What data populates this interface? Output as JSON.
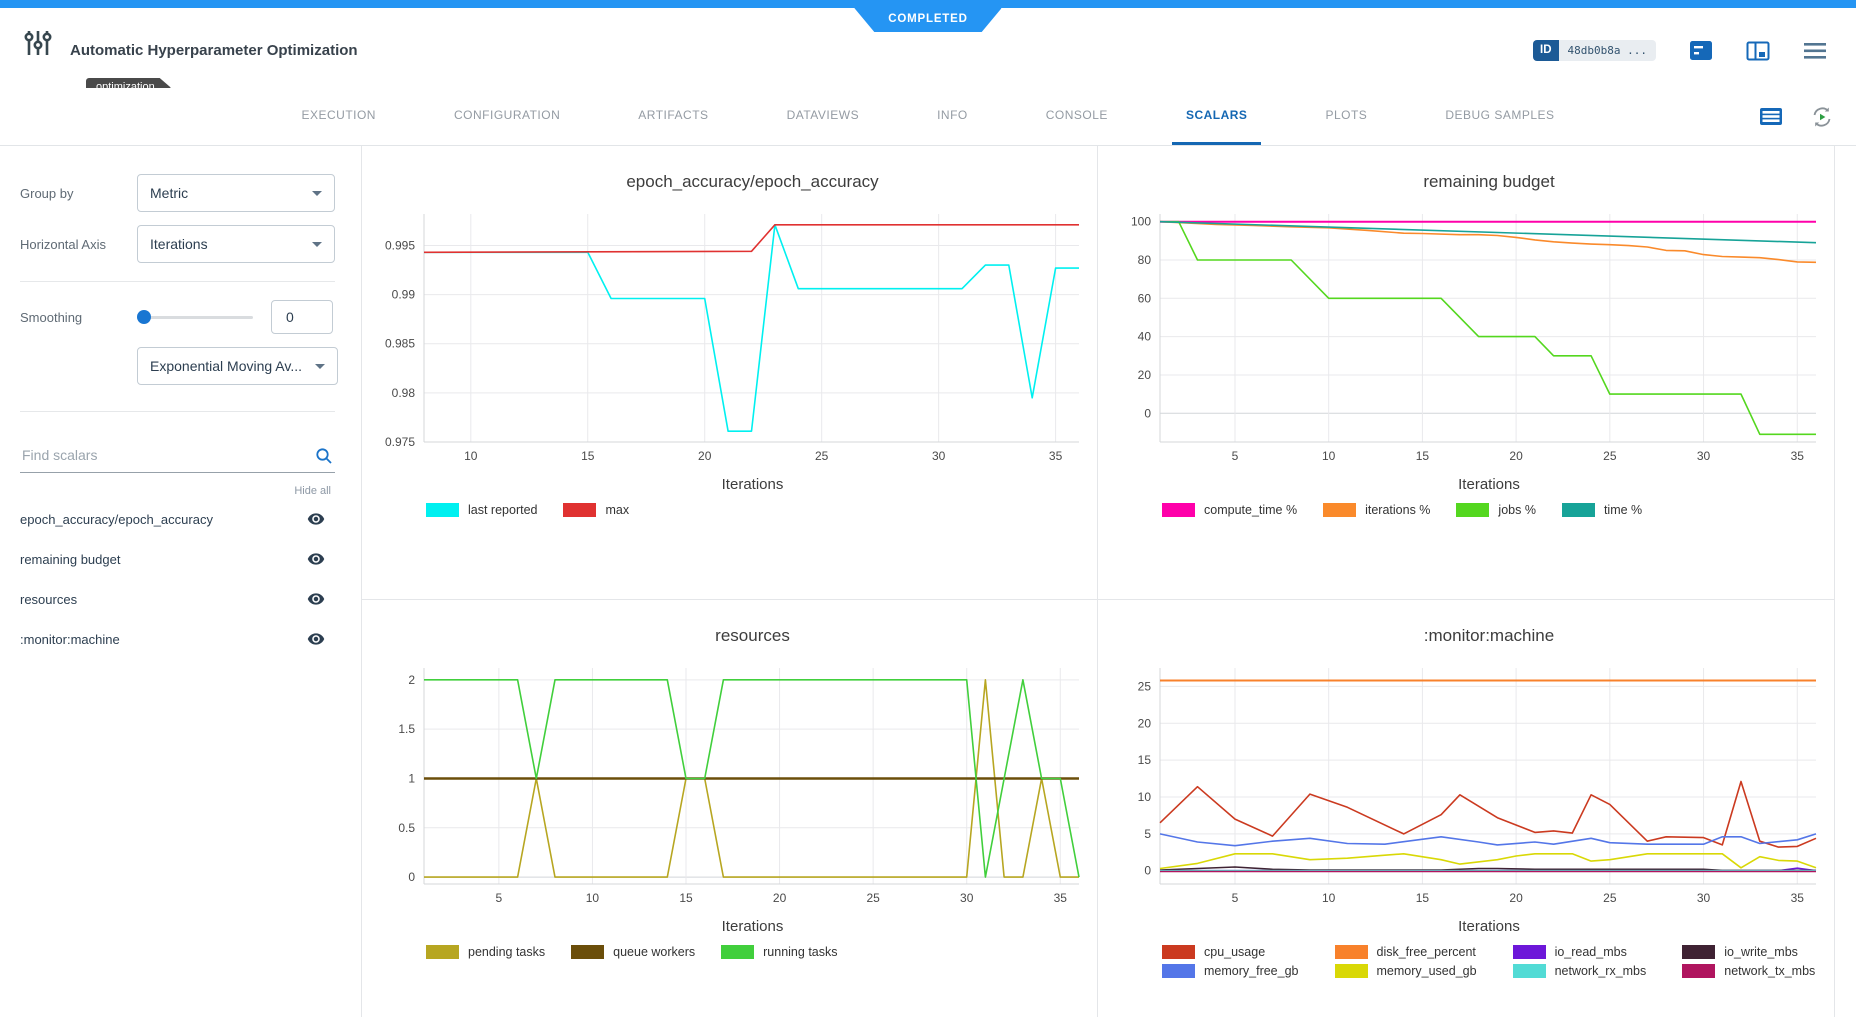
{
  "header": {
    "status_badge": "COMPLETED",
    "title": "Automatic Hyperparameter Optimization",
    "tag": "optimization",
    "id_label": "ID",
    "id_value": "48db0b8a ..."
  },
  "tabs": {
    "items": [
      "EXECUTION",
      "CONFIGURATION",
      "ARTIFACTS",
      "DATAVIEWS",
      "INFO",
      "CONSOLE",
      "SCALARS",
      "PLOTS",
      "DEBUG SAMPLES"
    ],
    "active": "SCALARS"
  },
  "sidebar": {
    "group_by_label": "Group by",
    "group_by_value": "Metric",
    "horizontal_axis_label": "Horizontal Axis",
    "horizontal_axis_value": "Iterations",
    "smoothing_label": "Smoothing",
    "smoothing_value": "0",
    "smoothing_type_value": "Exponential Moving Av...",
    "search_placeholder": "Find scalars",
    "hide_all_label": "Hide all",
    "scalars": [
      "epoch_accuracy/epoch_accuracy",
      "remaining budget",
      "resources",
      ":monitor:machine"
    ]
  },
  "icons": {
    "app": "tune-sliders-icon",
    "header": [
      "comment-icon",
      "split-panel-icon",
      "menu-icon"
    ],
    "tabbar": [
      "table-view-icon",
      "auto-refresh-icon"
    ],
    "sidebar": [
      "search-icon",
      "eye-icon"
    ]
  },
  "colors": {
    "accent_blue": "#2595f3",
    "active_tab": "#1467b3",
    "tag_bg": "#4a4a4a"
  },
  "chart_data": [
    {
      "type": "line",
      "title": "epoch_accuracy/epoch_accuracy",
      "xlabel": "Iterations",
      "xlim": [
        8,
        36
      ],
      "ylim": [
        0.975,
        0.9982
      ],
      "xticks": [
        10,
        15,
        20,
        25,
        30,
        35
      ],
      "yticks": [
        0.975,
        0.98,
        0.985,
        0.99,
        0.995
      ],
      "series": [
        {
          "name": "last reported",
          "color": "#00f0f0",
          "points": [
            [
              8,
              0.9943
            ],
            [
              15,
              0.9943
            ],
            [
              16,
              0.9896
            ],
            [
              20,
              0.9896
            ],
            [
              21,
              0.9761
            ],
            [
              22,
              0.9761
            ],
            [
              23,
              0.9971
            ],
            [
              24,
              0.9906
            ],
            [
              31,
              0.9906
            ],
            [
              32,
              0.993
            ],
            [
              33,
              0.993
            ],
            [
              34,
              0.9795
            ],
            [
              35,
              0.9927
            ],
            [
              36,
              0.9927
            ]
          ]
        },
        {
          "name": "max",
          "color": "#e03231",
          "points": [
            [
              8,
              0.9943
            ],
            [
              22,
              0.9944
            ],
            [
              23,
              0.9971
            ],
            [
              36,
              0.9971
            ]
          ]
        }
      ]
    },
    {
      "type": "line",
      "title": "remaining budget",
      "xlabel": "Iterations",
      "xlim": [
        1,
        36
      ],
      "ylim": [
        -15,
        104
      ],
      "xticks": [
        5,
        10,
        15,
        20,
        25,
        30,
        35
      ],
      "yticks": [
        0,
        20,
        40,
        60,
        80,
        100
      ],
      "series": [
        {
          "name": "compute_time %",
          "color": "#ff00aa",
          "width": 2,
          "points": [
            [
              1,
              100
            ],
            [
              36,
              100
            ]
          ]
        },
        {
          "name": "iterations %",
          "color": "#fa8a2b",
          "points": [
            [
              1,
              100
            ],
            [
              2,
              99.5
            ],
            [
              4,
              98.5
            ],
            [
              6,
              98
            ],
            [
              8,
              97.3
            ],
            [
              10,
              96.8
            ],
            [
              12,
              95.5
            ],
            [
              14,
              94
            ],
            [
              15,
              93.8
            ],
            [
              17,
              93.2
            ],
            [
              18,
              93.2
            ],
            [
              19,
              92.8
            ],
            [
              20,
              91.8
            ],
            [
              21,
              90.5
            ],
            [
              22,
              89.5
            ],
            [
              23,
              88.8
            ],
            [
              24,
              88.3
            ],
            [
              25,
              88
            ],
            [
              26,
              87.5
            ],
            [
              27,
              86.8
            ],
            [
              28,
              85
            ],
            [
              29,
              84.8
            ],
            [
              30,
              82.8
            ],
            [
              31,
              81.8
            ],
            [
              32,
              81.5
            ],
            [
              33,
              81.2
            ],
            [
              34,
              80.2
            ],
            [
              35,
              79
            ],
            [
              36,
              78.8
            ]
          ]
        },
        {
          "name": "jobs %",
          "color": "#54d71f",
          "points": [
            [
              1,
              100
            ],
            [
              2,
              100
            ],
            [
              3,
              80
            ],
            [
              8,
              80
            ],
            [
              10,
              60
            ],
            [
              16,
              60
            ],
            [
              18,
              40
            ],
            [
              21,
              40
            ],
            [
              22,
              30
            ],
            [
              24,
              30
            ],
            [
              25,
              10
            ],
            [
              32,
              10
            ],
            [
              33,
              -11
            ],
            [
              36,
              -11
            ]
          ]
        },
        {
          "name": "time %",
          "color": "#17a398",
          "points": [
            [
              1,
              100
            ],
            [
              36,
              89
            ]
          ]
        }
      ]
    },
    {
      "type": "line",
      "title": "resources",
      "xlabel": "Iterations",
      "xlim": [
        1,
        36
      ],
      "ylim": [
        -0.07,
        2.12
      ],
      "xticks": [
        5,
        10,
        15,
        20,
        25,
        30,
        35
      ],
      "yticks": [
        0,
        0.5,
        1,
        1.5,
        2
      ],
      "series": [
        {
          "name": "pending tasks",
          "color": "#b7a621",
          "points": [
            [
              1,
              0
            ],
            [
              6,
              0
            ],
            [
              7,
              1
            ],
            [
              8,
              0
            ],
            [
              14,
              0
            ],
            [
              15,
              1
            ],
            [
              16,
              1
            ],
            [
              17,
              0
            ],
            [
              30,
              0
            ],
            [
              31,
              2
            ],
            [
              32,
              0
            ],
            [
              33,
              0
            ],
            [
              34,
              1
            ],
            [
              35,
              0
            ],
            [
              36,
              0
            ]
          ]
        },
        {
          "name": "queue workers",
          "color": "#6b4e0a",
          "width": 2.5,
          "points": [
            [
              1,
              1
            ],
            [
              36,
              1
            ]
          ]
        },
        {
          "name": "running tasks",
          "color": "#41cf3c",
          "points": [
            [
              1,
              2
            ],
            [
              6,
              2
            ],
            [
              7,
              1
            ],
            [
              8,
              2
            ],
            [
              14,
              2
            ],
            [
              15,
              1
            ],
            [
              16,
              1
            ],
            [
              17,
              2
            ],
            [
              30,
              2
            ],
            [
              31,
              0
            ],
            [
              33,
              2
            ],
            [
              34,
              1
            ],
            [
              35,
              1
            ],
            [
              36,
              0
            ]
          ]
        }
      ]
    },
    {
      "type": "line",
      "title": ":monitor:machine",
      "xlabel": "Iterations",
      "xlim": [
        1,
        36
      ],
      "ylim": [
        -1.8,
        27.5
      ],
      "xticks": [
        5,
        10,
        15,
        20,
        25,
        30,
        35
      ],
      "yticks": [
        0,
        5,
        10,
        15,
        20,
        25
      ],
      "legend_columns": 4,
      "series": [
        {
          "name": "cpu_usage",
          "color": "#cb3a20",
          "points": [
            [
              1,
              6.5
            ],
            [
              3,
              11.4
            ],
            [
              5,
              7
            ],
            [
              7,
              4.7
            ],
            [
              9,
              10.4
            ],
            [
              11,
              8.6
            ],
            [
              14,
              5
            ],
            [
              16,
              7.6
            ],
            [
              17,
              10.3
            ],
            [
              19,
              7.2
            ],
            [
              21,
              5.2
            ],
            [
              22,
              5.4
            ],
            [
              23,
              5.1
            ],
            [
              24,
              10.3
            ],
            [
              25,
              9
            ],
            [
              27,
              4
            ],
            [
              28,
              4.6
            ],
            [
              30,
              4.5
            ],
            [
              31,
              3.5
            ],
            [
              32,
              12.1
            ],
            [
              33,
              4
            ],
            [
              34,
              3.2
            ],
            [
              35,
              3.3
            ],
            [
              36,
              4.4
            ]
          ]
        },
        {
          "name": "disk_free_percent",
          "color": "#f8812b",
          "width": 2,
          "points": [
            [
              1,
              25.8
            ],
            [
              36,
              25.8
            ]
          ]
        },
        {
          "name": "io_read_mbs",
          "color": "#6d17d9",
          "points": [
            [
              1,
              0
            ],
            [
              34,
              0
            ],
            [
              35,
              0.35
            ],
            [
              36,
              0
            ]
          ]
        },
        {
          "name": "io_write_mbs",
          "color": "#3f2233",
          "points": [
            [
              1,
              0.1
            ],
            [
              3,
              0.3
            ],
            [
              5,
              0.5
            ],
            [
              7,
              0.2
            ],
            [
              9,
              0.1
            ],
            [
              16,
              0.1
            ],
            [
              18,
              0.3
            ],
            [
              19,
              0.3
            ],
            [
              21,
              0.2
            ],
            [
              24,
              0.2
            ],
            [
              26,
              0.2
            ],
            [
              30,
              0.2
            ],
            [
              31,
              0.05
            ],
            [
              36,
              0.05
            ]
          ]
        },
        {
          "name": "memory_free_gb",
          "color": "#5476e8",
          "points": [
            [
              1,
              5
            ],
            [
              3,
              3.9
            ],
            [
              5,
              3.4
            ],
            [
              7,
              4
            ],
            [
              9,
              4.4
            ],
            [
              11,
              3.7
            ],
            [
              13,
              3.6
            ],
            [
              16,
              4.6
            ],
            [
              18,
              3.9
            ],
            [
              19,
              3.5
            ],
            [
              21,
              3.9
            ],
            [
              22,
              3.6
            ],
            [
              24,
              4.4
            ],
            [
              25,
              3.8
            ],
            [
              27,
              3.6
            ],
            [
              30,
              3.6
            ],
            [
              31,
              4.6
            ],
            [
              32,
              4.6
            ],
            [
              33,
              3.7
            ],
            [
              35,
              4.2
            ],
            [
              36,
              5
            ]
          ]
        },
        {
          "name": "memory_used_gb",
          "color": "#d9d806",
          "points": [
            [
              1,
              0.3
            ],
            [
              3,
              1
            ],
            [
              5,
              2.3
            ],
            [
              7,
              2.3
            ],
            [
              9,
              1.5
            ],
            [
              11,
              1.7
            ],
            [
              13,
              2.1
            ],
            [
              14,
              2.3
            ],
            [
              16,
              1.5
            ],
            [
              17,
              0.9
            ],
            [
              19,
              1.5
            ],
            [
              20,
              2
            ],
            [
              21,
              2.3
            ],
            [
              23,
              2.3
            ],
            [
              24,
              1.3
            ],
            [
              25,
              1.5
            ],
            [
              27,
              2.3
            ],
            [
              31,
              2.3
            ],
            [
              32,
              0.4
            ],
            [
              33,
              1.9
            ],
            [
              34,
              1.4
            ],
            [
              35,
              1.3
            ],
            [
              36,
              0.4
            ]
          ]
        },
        {
          "name": "network_rx_mbs",
          "color": "#52dbd5",
          "points": [
            [
              1,
              0
            ],
            [
              36,
              0
            ]
          ]
        },
        {
          "name": "network_tx_mbs",
          "color": "#b0155f",
          "points": [
            [
              1,
              -0.1
            ],
            [
              36,
              -0.1
            ]
          ]
        }
      ]
    }
  ]
}
